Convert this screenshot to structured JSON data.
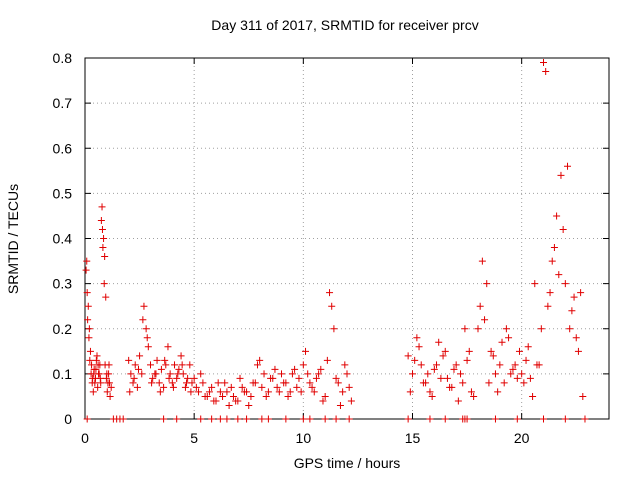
{
  "chart_data": {
    "type": "scatter",
    "title": "Day 311 of 2017, SRMTID for receiver prcv",
    "xlabel": "GPS time / hours",
    "ylabel": "SRMTID / TECUs",
    "xlim": [
      0,
      24
    ],
    "ylim": [
      0,
      0.8
    ],
    "x_ticks": [
      0,
      5,
      10,
      15,
      20
    ],
    "x_tick_labels": [
      "0",
      "5",
      "10",
      "15",
      "20"
    ],
    "y_ticks": [
      0,
      0.1,
      0.2,
      0.3,
      0.4,
      0.5,
      0.6,
      0.7,
      0.8
    ],
    "y_tick_labels": [
      "0",
      "0.1",
      "0.2",
      "0.3",
      "0.4",
      "0.5",
      "0.6",
      "0.7",
      "0.8"
    ],
    "grid": true,
    "marker": "+",
    "series": [
      {
        "name": "SRMTID",
        "color": "#e00000",
        "x": [
          0.05,
          0.1,
          0.15,
          0.2,
          0.25,
          0.3,
          0.35,
          0.4,
          0.45,
          0.5,
          0.55,
          0.6,
          0.65,
          0.7,
          0.75,
          0.8,
          0.85,
          0.9,
          0.95,
          1.0,
          1.05,
          1.1,
          1.15,
          1.2,
          0.08,
          0.12,
          0.18,
          0.22,
          0.28,
          0.33,
          0.38,
          0.42,
          0.48,
          0.52,
          0.58,
          0.62,
          0.68,
          0.72,
          0.78,
          0.82,
          0.88,
          0.92,
          0.98,
          1.02,
          1.08,
          1.12,
          2.0,
          2.1,
          2.2,
          2.3,
          2.4,
          2.5,
          2.6,
          2.7,
          2.8,
          2.9,
          3.0,
          3.1,
          3.2,
          3.3,
          3.4,
          3.5,
          3.6,
          3.7,
          3.8,
          3.9,
          4.0,
          4.1,
          4.2,
          4.3,
          4.4,
          4.5,
          4.6,
          4.7,
          4.8,
          4.9,
          2.05,
          2.25,
          2.45,
          2.65,
          2.85,
          3.05,
          3.25,
          3.45,
          3.65,
          3.85,
          4.05,
          4.25,
          4.45,
          4.65,
          4.85,
          5.0,
          5.2,
          5.4,
          5.6,
          5.8,
          6.0,
          6.2,
          6.4,
          6.6,
          6.8,
          7.0,
          7.2,
          7.4,
          7.6,
          7.8,
          8.0,
          8.2,
          8.4,
          8.6,
          8.8,
          9.0,
          9.2,
          9.4,
          9.6,
          9.8,
          5.1,
          5.3,
          5.5,
          5.7,
          5.9,
          6.1,
          6.3,
          6.5,
          6.7,
          6.9,
          7.1,
          7.3,
          7.5,
          7.7,
          7.9,
          8.1,
          8.3,
          8.5,
          8.7,
          8.9,
          9.1,
          9.3,
          9.5,
          9.7,
          9.9,
          10.0,
          10.2,
          10.4,
          10.6,
          10.8,
          11.0,
          11.2,
          11.4,
          11.6,
          11.8,
          12.0,
          12.2,
          10.1,
          10.3,
          10.5,
          10.7,
          10.9,
          11.1,
          11.3,
          11.5,
          11.7,
          11.9,
          12.1,
          14.8,
          15.0,
          15.2,
          15.4,
          15.6,
          15.8,
          16.0,
          16.2,
          16.4,
          16.6,
          16.8,
          17.0,
          17.2,
          17.4,
          17.6,
          17.8,
          14.9,
          15.1,
          15.3,
          15.5,
          15.7,
          15.9,
          16.1,
          16.3,
          16.5,
          16.7,
          16.9,
          17.1,
          17.3,
          17.5,
          17.7,
          18.0,
          18.2,
          18.4,
          18.6,
          18.8,
          19.0,
          19.2,
          19.4,
          19.6,
          19.8,
          18.1,
          18.3,
          18.5,
          18.7,
          18.9,
          19.1,
          19.3,
          19.5,
          19.7,
          19.9,
          20.0,
          20.2,
          20.4,
          20.6,
          20.8,
          21.0,
          21.2,
          21.4,
          21.6,
          21.8,
          22.0,
          22.2,
          22.4,
          22.6,
          22.8,
          20.1,
          20.3,
          20.5,
          20.7,
          20.9,
          21.1,
          21.3,
          21.5,
          21.7,
          21.9,
          22.1,
          22.3,
          22.5,
          22.7
        ],
        "y": [
          0.33,
          0.28,
          0.25,
          0.2,
          0.15,
          0.12,
          0.09,
          0.1,
          0.08,
          0.11,
          0.14,
          0.12,
          0.1,
          0.09,
          0.44,
          0.42,
          0.4,
          0.36,
          0.27,
          0.1,
          0.08,
          0.12,
          0.05,
          0.07,
          0.35,
          0.22,
          0.18,
          0.13,
          0.1,
          0.08,
          0.06,
          0.11,
          0.09,
          0.13,
          0.07,
          0.1,
          0.12,
          0.08,
          0.47,
          0.38,
          0.3,
          0.12,
          0.09,
          0.06,
          0.1,
          0.08,
          0.13,
          0.1,
          0.08,
          0.12,
          0.07,
          0.14,
          0.1,
          0.25,
          0.2,
          0.16,
          0.12,
          0.09,
          0.1,
          0.13,
          0.08,
          0.11,
          0.07,
          0.12,
          0.16,
          0.1,
          0.08,
          0.12,
          0.09,
          0.11,
          0.14,
          0.1,
          0.07,
          0.09,
          0.12,
          0.08,
          0.06,
          0.09,
          0.11,
          0.22,
          0.18,
          0.08,
          0.1,
          0.06,
          0.13,
          0.09,
          0.07,
          0.1,
          0.12,
          0.08,
          0.06,
          0.09,
          0.06,
          0.08,
          0.05,
          0.07,
          0.04,
          0.06,
          0.08,
          0.03,
          0.05,
          0.04,
          0.07,
          0.06,
          0.05,
          0.08,
          0.13,
          0.1,
          0.06,
          0.09,
          0.07,
          0.1,
          0.08,
          0.06,
          0.11,
          0.09,
          0.07,
          0.1,
          0.05,
          0.06,
          0.04,
          0.08,
          0.05,
          0.06,
          0.07,
          0.04,
          0.09,
          0.06,
          0.03,
          0.08,
          0.12,
          0.07,
          0.05,
          0.09,
          0.11,
          0.06,
          0.08,
          0.05,
          0.1,
          0.07,
          0.06,
          0.12,
          0.1,
          0.07,
          0.09,
          0.11,
          0.05,
          0.28,
          0.2,
          0.08,
          0.06,
          0.1,
          0.04,
          0.15,
          0.08,
          0.06,
          0.1,
          0.04,
          0.13,
          0.25,
          0.09,
          0.03,
          0.12,
          0.07,
          0.14,
          0.1,
          0.18,
          0.12,
          0.08,
          0.06,
          0.11,
          0.17,
          0.14,
          0.09,
          0.07,
          0.12,
          0.1,
          0.2,
          0.15,
          0.05,
          0.06,
          0.13,
          0.16,
          0.08,
          0.1,
          0.05,
          0.12,
          0.09,
          0.15,
          0.07,
          0.11,
          0.04,
          0.08,
          0.13,
          0.06,
          0.2,
          0.35,
          0.3,
          0.15,
          0.1,
          0.12,
          0.08,
          0.18,
          0.11,
          0.09,
          0.25,
          0.22,
          0.08,
          0.14,
          0.06,
          0.17,
          0.2,
          0.1,
          0.12,
          0.15,
          0.1,
          0.13,
          0.09,
          0.3,
          0.12,
          0.79,
          0.25,
          0.35,
          0.45,
          0.54,
          0.3,
          0.2,
          0.27,
          0.15,
          0.05,
          0.08,
          0.16,
          0.05,
          0.12,
          0.2,
          0.77,
          0.28,
          0.38,
          0.32,
          0.42,
          0.56,
          0.24,
          0.18,
          0.28
        ]
      }
    ],
    "baseline_markers_x": [
      0.1,
      1.3,
      1.45,
      1.6,
      1.75,
      3.6,
      4.2,
      5.3,
      5.8,
      6.2,
      6.5,
      7.0,
      7.4,
      8.1,
      8.4,
      9.2,
      10.0,
      10.3,
      11.0,
      11.5,
      12.1,
      14.8,
      15.8,
      16.5,
      17.3,
      17.4,
      17.5,
      18.8,
      19.8,
      21.0,
      22.0,
      22.9
    ]
  }
}
